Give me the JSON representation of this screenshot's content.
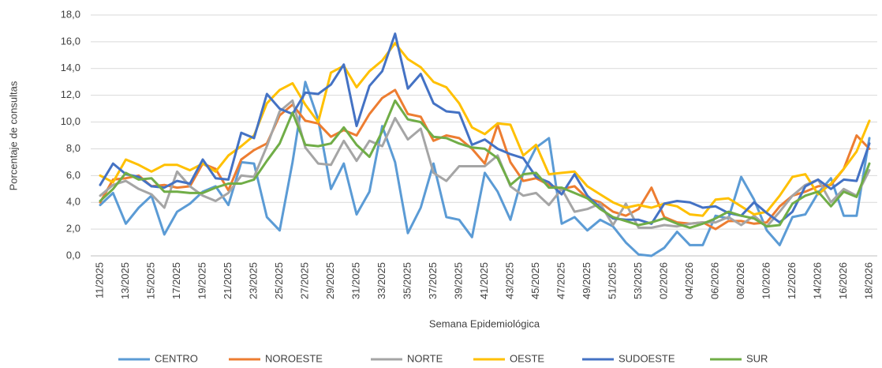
{
  "chart_data": {
    "type": "line",
    "x_label": "Semana Epidemiológica",
    "y_label": "Porcentaje de consultas",
    "categories": [
      "11/2025",
      null,
      "13/2025",
      null,
      "15/2025",
      null,
      "17/2025",
      null,
      "19/2025",
      null,
      "21/2025",
      null,
      "23/2025",
      null,
      "25/2025",
      null,
      "27/2025",
      null,
      "29/2025",
      null,
      "31/2025",
      null,
      "33/2025",
      null,
      "35/2025",
      null,
      "37/2025",
      null,
      "39/2025",
      null,
      "41/2025",
      null,
      "43/2025",
      null,
      "45/2025",
      null,
      "47/2025",
      null,
      "49/2025",
      null,
      "51/2025",
      null,
      "53/2025",
      null,
      "02/2026",
      null,
      "04/2026",
      null,
      "06/2026",
      null,
      "08/2026",
      null,
      "10/2026",
      null,
      "12/2026",
      null,
      "14/2026",
      null,
      "16/2026",
      null,
      "18/2026"
    ],
    "ylim": [
      0,
      18
    ],
    "yticks": [
      {
        "value": 0,
        "label": "0,0"
      },
      {
        "value": 2,
        "label": "2,0"
      },
      {
        "value": 4,
        "label": "4,0"
      },
      {
        "value": 6,
        "label": "6,0"
      },
      {
        "value": 8,
        "label": "8,0"
      },
      {
        "value": 10,
        "label": "10,0"
      },
      {
        "value": 12,
        "label": "12,0"
      },
      {
        "value": 14,
        "label": "14,0"
      },
      {
        "value": 16,
        "label": "16,0"
      },
      {
        "value": 18,
        "label": "18,0"
      }
    ],
    "grid": true,
    "legend": "bottom",
    "series": [
      {
        "name": "CENTRO",
        "color": "#5b9bd5",
        "values": [
          3.8,
          4.7,
          2.4,
          3.6,
          4.5,
          1.6,
          3.3,
          3.9,
          4.8,
          5.2,
          3.8,
          7.0,
          6.9,
          2.9,
          1.9,
          7.0,
          13.0,
          10.2,
          5.0,
          6.9,
          3.1,
          4.8,
          9.7,
          7.0,
          1.7,
          3.6,
          6.9,
          2.9,
          2.7,
          1.4,
          6.2,
          4.8,
          2.7,
          6.2,
          8.1,
          8.8,
          2.4,
          2.9,
          1.9,
          2.7,
          2.2,
          1.0,
          0.1,
          0.0,
          0.6,
          1.8,
          0.8,
          0.8,
          3.0,
          2.8,
          5.9,
          4.2,
          1.9,
          0.8,
          2.9,
          3.1,
          4.7,
          5.8,
          3.0,
          3.0,
          8.8
        ]
      },
      {
        "name": "NOROESTE",
        "color": "#ed7d31",
        "values": [
          4.0,
          5.7,
          5.8,
          6.0,
          5.2,
          5.3,
          5.1,
          5.2,
          6.9,
          6.5,
          4.9,
          7.2,
          7.9,
          8.4,
          10.5,
          11.3,
          10.1,
          9.9,
          8.9,
          9.4,
          9.0,
          10.6,
          11.8,
          12.4,
          10.6,
          10.4,
          8.6,
          9.0,
          8.8,
          8.0,
          6.9,
          9.8,
          7.0,
          5.6,
          5.8,
          5.3,
          5.0,
          5.2,
          4.3,
          4.0,
          3.3,
          3.0,
          3.5,
          5.1,
          2.9,
          2.5,
          2.4,
          2.5,
          2.0,
          2.6,
          2.6,
          2.4,
          2.5,
          3.7,
          4.5,
          4.8,
          5.2,
          5.3,
          6.5,
          9.0,
          8.0
        ]
      },
      {
        "name": "NORTE",
        "color": "#a5a5a5",
        "values": [
          4.5,
          5.3,
          5.6,
          5.0,
          4.6,
          3.6,
          6.3,
          5.2,
          4.5,
          4.1,
          4.7,
          6.0,
          5.9,
          8.2,
          10.8,
          11.6,
          8.1,
          6.9,
          6.8,
          8.6,
          7.1,
          8.6,
          8.2,
          10.3,
          8.7,
          9.5,
          6.2,
          5.6,
          6.7,
          6.7,
          6.7,
          7.5,
          5.2,
          4.5,
          4.7,
          3.8,
          5.0,
          3.3,
          3.5,
          3.9,
          2.3,
          3.9,
          2.1,
          2.1,
          2.3,
          2.2,
          2.4,
          2.5,
          2.5,
          2.9,
          2.3,
          3.0,
          2.2,
          3.3,
          4.5,
          5.3,
          5.7,
          4.0,
          5.0,
          4.5,
          6.4
        ]
      },
      {
        "name": "OESTE",
        "color": "#ffc000",
        "values": [
          6.0,
          5.5,
          7.2,
          6.8,
          6.3,
          6.8,
          6.8,
          6.4,
          6.9,
          6.3,
          7.5,
          8.2,
          9.0,
          11.4,
          12.4,
          12.9,
          11.3,
          10.0,
          13.7,
          14.2,
          12.6,
          13.8,
          14.6,
          15.9,
          14.7,
          14.1,
          13.0,
          12.6,
          11.4,
          9.6,
          9.1,
          9.9,
          9.8,
          7.5,
          8.3,
          6.1,
          6.2,
          6.3,
          5.2,
          4.6,
          4.0,
          3.6,
          3.8,
          3.6,
          3.9,
          3.7,
          3.1,
          3.0,
          4.2,
          4.3,
          3.7,
          3.1,
          3.3,
          4.5,
          5.9,
          6.1,
          4.6,
          5.4,
          6.5,
          7.8,
          10.1
        ]
      },
      {
        "name": "SUDOESTE",
        "color": "#4472c4",
        "values": [
          5.3,
          6.9,
          6.1,
          5.9,
          5.2,
          5.1,
          5.6,
          5.4,
          7.2,
          5.8,
          5.7,
          9.2,
          8.8,
          12.1,
          11.0,
          10.6,
          12.2,
          12.1,
          12.8,
          14.3,
          9.7,
          12.7,
          13.8,
          16.6,
          12.5,
          13.6,
          11.4,
          10.8,
          10.7,
          8.3,
          8.7,
          8.0,
          7.6,
          7.3,
          5.9,
          5.5,
          4.6,
          6.1,
          4.5,
          3.6,
          2.8,
          2.7,
          2.7,
          2.4,
          3.9,
          4.1,
          4.0,
          3.6,
          3.7,
          3.2,
          3.0,
          4.0,
          3.2,
          2.5,
          3.3,
          5.2,
          5.7,
          5.0,
          5.7,
          5.6,
          8.4
        ]
      },
      {
        "name": "SUR",
        "color": "#70ad47",
        "values": [
          4.1,
          5.0,
          6.2,
          5.7,
          5.8,
          4.8,
          4.8,
          4.7,
          4.7,
          5.1,
          5.4,
          5.4,
          5.7,
          7.1,
          8.4,
          10.7,
          8.3,
          8.2,
          8.4,
          9.6,
          8.3,
          7.4,
          9.3,
          11.6,
          10.2,
          10.0,
          8.9,
          8.8,
          8.4,
          8.1,
          8.0,
          7.3,
          5.3,
          6.1,
          6.2,
          5.1,
          5.1,
          4.7,
          4.3,
          3.5,
          2.9,
          2.6,
          2.3,
          2.5,
          2.8,
          2.4,
          2.1,
          2.4,
          2.8,
          3.3,
          3.0,
          2.8,
          2.2,
          2.3,
          3.9,
          4.5,
          4.8,
          3.7,
          4.8,
          4.4,
          6.9
        ]
      }
    ]
  }
}
